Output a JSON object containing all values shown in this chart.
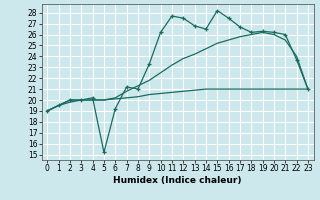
{
  "xlabel": "Humidex (Indice chaleur)",
  "ylabel": "",
  "bg_color": "#cce8ec",
  "grid_color": "#ffffff",
  "line_color": "#1a6b5e",
  "xlim": [
    -0.5,
    23.5
  ],
  "ylim": [
    14.5,
    28.8
  ],
  "xticks": [
    0,
    1,
    2,
    3,
    4,
    5,
    6,
    7,
    8,
    9,
    10,
    11,
    12,
    13,
    14,
    15,
    16,
    17,
    18,
    19,
    20,
    21,
    22,
    23
  ],
  "yticks": [
    15,
    16,
    17,
    18,
    19,
    20,
    21,
    22,
    23,
    24,
    25,
    26,
    27,
    28
  ],
  "series1_x": [
    0,
    1,
    2,
    3,
    4,
    5,
    6,
    7,
    8,
    9,
    10,
    11,
    12,
    13,
    14,
    15,
    16,
    17,
    18,
    19,
    20,
    21,
    22,
    23
  ],
  "series1_y": [
    19.0,
    19.5,
    20.0,
    20.0,
    20.2,
    15.2,
    19.2,
    21.2,
    21.0,
    23.3,
    26.2,
    27.7,
    27.5,
    26.8,
    26.5,
    28.2,
    27.5,
    26.7,
    26.2,
    26.3,
    26.2,
    26.0,
    23.7,
    21.0
  ],
  "series2_x": [
    0,
    1,
    2,
    3,
    4,
    5,
    6,
    7,
    8,
    9,
    10,
    11,
    12,
    13,
    14,
    15,
    16,
    17,
    18,
    19,
    20,
    21,
    22,
    23
  ],
  "series2_y": [
    19.0,
    19.5,
    20.0,
    20.0,
    20.0,
    20.0,
    20.2,
    20.8,
    21.3,
    21.8,
    22.5,
    23.2,
    23.8,
    24.2,
    24.7,
    25.2,
    25.5,
    25.8,
    26.0,
    26.2,
    26.0,
    25.5,
    24.0,
    21.0
  ],
  "series3_x": [
    0,
    1,
    2,
    3,
    4,
    5,
    6,
    7,
    8,
    9,
    10,
    11,
    12,
    13,
    14,
    15,
    16,
    17,
    18,
    19,
    20,
    21,
    22,
    23
  ],
  "series3_y": [
    19.0,
    19.5,
    19.8,
    20.0,
    20.0,
    20.0,
    20.1,
    20.2,
    20.3,
    20.5,
    20.6,
    20.7,
    20.8,
    20.9,
    21.0,
    21.0,
    21.0,
    21.0,
    21.0,
    21.0,
    21.0,
    21.0,
    21.0,
    21.0
  ]
}
